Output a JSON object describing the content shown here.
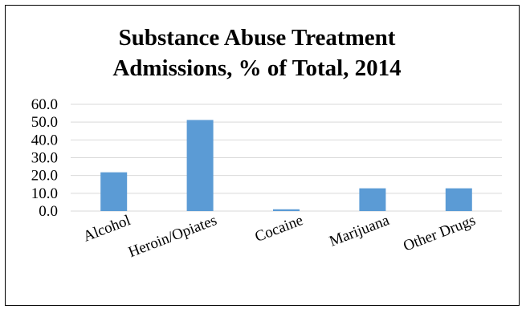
{
  "chart_data": {
    "type": "bar",
    "title_lines": [
      "Substance Abuse Treatment",
      "Admissions, % of Total, 2014"
    ],
    "categories": [
      "Alcohol",
      "Heroin/Opiates",
      "Cocaine",
      "Marijuana",
      "Other Drugs"
    ],
    "values": [
      21.8,
      51.2,
      1.0,
      12.8,
      12.8
    ],
    "ylim": [
      0,
      60
    ],
    "yticks": [
      "0.0",
      "10.0",
      "20.0",
      "30.0",
      "40.0",
      "50.0",
      "60.0"
    ],
    "xlabel": "",
    "ylabel": "",
    "grid": true,
    "legend": "none",
    "bar_color": "#5b9bd5",
    "grid_color": "#d9d9d9"
  }
}
